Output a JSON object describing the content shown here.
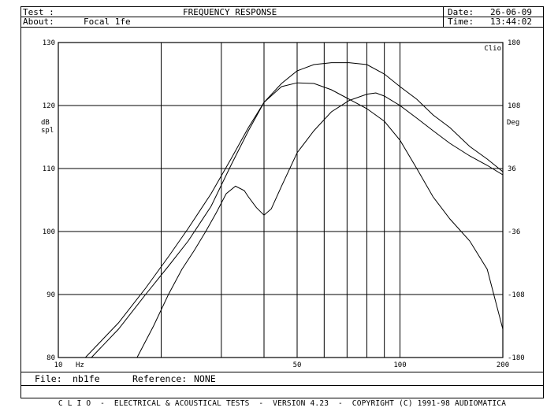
{
  "header": {
    "test_label": "Test :",
    "test_value": "",
    "about_label": "About:",
    "about_value": "Focal 1fe",
    "title": "FREQUENCY RESPONSE",
    "date_label": "Date:",
    "date_value": "26-06-09",
    "time_label": "Time:",
    "time_value": "13:44:02"
  },
  "file_bar": {
    "file_label": "File:",
    "file_value": "nb1fe",
    "reference_label": "Reference:",
    "reference_value": "NONE"
  },
  "footer": {
    "text": "C L I O  -  ELECTRICAL & ACOUSTICAL TESTS  -  VERSION 4.23  -  COPYRIGHT (C) 1991-98 AUDIOMATICA"
  },
  "chart_data": {
    "type": "line",
    "title": "FREQUENCY RESPONSE",
    "x_scale": "log",
    "xlim": [
      10,
      200
    ],
    "x_ticks": [
      10,
      50,
      100,
      200
    ],
    "x_tick_labels": [
      "10",
      "50",
      "100",
      "200"
    ],
    "x_unit": "Hz",
    "ylim": [
      80,
      130
    ],
    "y_ticks": [
      80,
      90,
      100,
      110,
      120,
      130
    ],
    "y_tick_labels": [
      "80",
      "90",
      "100",
      "110",
      "120",
      "130"
    ],
    "ylabel": "dB spl",
    "y2lim": [
      -180,
      180
    ],
    "y2_ticks": [
      -180,
      -108,
      -36,
      36,
      108,
      180
    ],
    "y2_tick_labels": [
      "-180",
      "-108",
      "-36",
      "36",
      "108",
      "180"
    ],
    "y2label": "Deg",
    "y2_tag": "Clio",
    "grid": true,
    "series": [
      {
        "x": [
          12,
          15,
          18,
          21,
          24,
          28,
          32,
          36,
          40,
          45,
          50,
          56,
          63,
          71,
          80,
          90,
          100,
          112,
          125,
          140,
          160,
          180,
          200
        ],
        "y": [
          79.5,
          85.5,
          91,
          96,
          100.5,
          106,
          111.5,
          116.5,
          120.5,
          123.5,
          125.5,
          126.5,
          126.8,
          126.8,
          126.5,
          125,
          123,
          121,
          118.5,
          116.5,
          113.5,
          111.5,
          109.5
        ]
      },
      {
        "x": [
          12.5,
          15,
          18,
          21,
          24,
          28,
          32,
          36,
          40,
          45,
          50,
          56,
          63,
          71,
          80,
          90,
          100,
          112,
          125,
          140,
          160,
          180,
          200
        ],
        "y": [
          79.5,
          84.5,
          90,
          94.5,
          98.5,
          104,
          110.5,
          116,
          120.5,
          123,
          123.6,
          123.5,
          122.5,
          121,
          119.5,
          117.5,
          114.5,
          110,
          105.5,
          102,
          98.5,
          94,
          84.5
        ]
      },
      {
        "x": [
          17,
          19,
          21,
          23,
          25,
          27,
          29,
          31,
          33,
          35,
          36,
          38,
          40,
          42,
          45,
          50,
          56,
          63,
          71,
          80,
          85,
          90,
          100,
          112,
          125,
          140,
          160,
          180,
          200
        ],
        "y": [
          79.5,
          85,
          90,
          94,
          97,
          100,
          103,
          106,
          107.2,
          106.5,
          105.5,
          103.8,
          102.6,
          103.6,
          107.2,
          112.5,
          116,
          119,
          120.8,
          121.8,
          122,
          121.5,
          120,
          118,
          116,
          114,
          112,
          110.5,
          109
        ]
      }
    ]
  }
}
